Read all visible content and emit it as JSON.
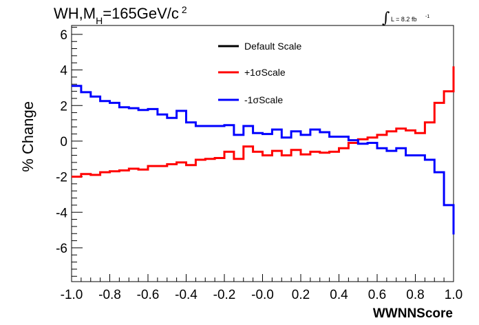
{
  "chart_data": {
    "type": "line",
    "title": {
      "main": "WH,M",
      "subscript": "H",
      "rest": "=165GeV/c",
      "superscript": "2"
    },
    "lumi_label": {
      "integral_symbol": "∫",
      "text": "L = 8.2 fb",
      "superscript": "-1"
    },
    "xlabel": "WWNNScore",
    "ylabel": "% Change",
    "xlim": [
      -1.0,
      1.0
    ],
    "ylim": [
      -7.9,
      6.5
    ],
    "x_ticks": [
      -1.0,
      -0.8,
      -0.6,
      -0.4,
      -0.2,
      0.0,
      0.2,
      0.4,
      0.6,
      0.8,
      1.0
    ],
    "x_tick_labels": [
      "-1.0",
      "-0.8",
      "-0.6",
      "-0.4",
      "-0.2",
      "-0.0",
      "0.2",
      "0.4",
      "0.6",
      "0.8",
      "1.0"
    ],
    "y_ticks": [
      -6,
      -4,
      -2,
      0,
      2,
      4,
      6
    ],
    "y_tick_labels": [
      "-6",
      "-4",
      "-2",
      "0",
      "2",
      "4",
      "6"
    ],
    "grid": false,
    "legend_position": "top-center",
    "bin_edges": [
      -1.0,
      -0.95,
      -0.9,
      -0.85,
      -0.8,
      -0.75,
      -0.7,
      -0.65,
      -0.6,
      -0.55,
      -0.5,
      -0.45,
      -0.4,
      -0.35,
      -0.3,
      -0.25,
      -0.2,
      -0.15,
      -0.1,
      -0.05,
      0.0,
      0.05,
      0.1,
      0.15,
      0.2,
      0.25,
      0.3,
      0.35,
      0.4,
      0.45,
      0.5,
      0.55,
      0.6,
      0.65,
      0.7,
      0.75,
      0.8,
      0.85,
      0.9,
      0.95,
      1.0
    ],
    "series": [
      {
        "name": "Default Scale",
        "color": "#000000",
        "values": []
      },
      {
        "name": "+1σScale",
        "color": "#ff0000",
        "values": [
          -2.0,
          -1.85,
          -1.9,
          -1.75,
          -1.7,
          -1.65,
          -1.55,
          -1.6,
          -1.4,
          -1.4,
          -1.3,
          -1.2,
          -1.35,
          -1.05,
          -1.0,
          -0.95,
          -0.6,
          -1.0,
          -0.3,
          -0.6,
          -0.8,
          -0.55,
          -0.8,
          -0.5,
          -0.75,
          -0.6,
          -0.65,
          -0.6,
          -0.4,
          -0.1,
          0.1,
          0.2,
          0.35,
          0.55,
          0.7,
          0.6,
          0.45,
          1.05,
          2.15,
          2.8,
          4.2
        ]
      },
      {
        "name": "-1σScale",
        "color": "#0000ff",
        "values": [
          3.1,
          2.75,
          2.5,
          2.25,
          2.15,
          1.9,
          1.85,
          1.75,
          1.8,
          1.5,
          1.3,
          1.7,
          1.05,
          0.85,
          0.85,
          0.85,
          0.9,
          0.35,
          0.85,
          0.45,
          0.4,
          0.65,
          0.2,
          0.55,
          0.35,
          0.65,
          0.5,
          0.25,
          0.25,
          0.05,
          -0.15,
          -0.1,
          -0.4,
          -0.55,
          -0.4,
          -0.8,
          -0.8,
          -1.05,
          -1.75,
          -3.6,
          -5.25
        ]
      }
    ]
  }
}
